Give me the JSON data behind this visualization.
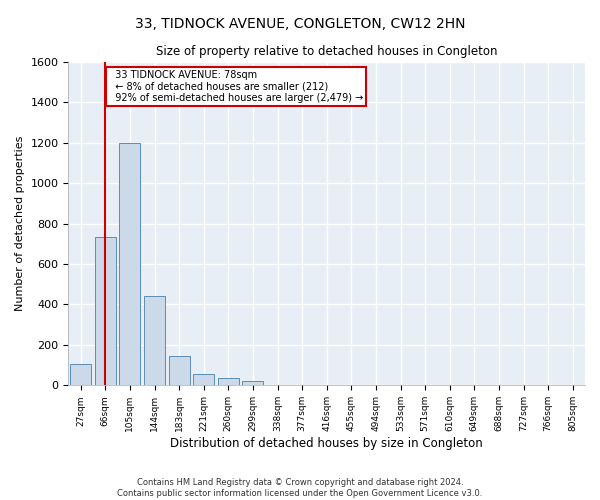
{
  "title": "33, TIDNOCK AVENUE, CONGLETON, CW12 2HN",
  "subtitle": "Size of property relative to detached houses in Congleton",
  "xlabel": "Distribution of detached houses by size in Congleton",
  "ylabel": "Number of detached properties",
  "bar_color": "#ccd9e8",
  "bar_edge_color": "#5b8db8",
  "background_color": "#e8eef5",
  "grid_color": "#ffffff",
  "annotation_box_color": "#cc0000",
  "vline_color": "#cc0000",
  "vline_x_index": 1,
  "annotation_text": "  33 TIDNOCK AVENUE: 78sqm\n  ← 8% of detached houses are smaller (212)\n  92% of semi-detached houses are larger (2,479) →",
  "categories": [
    "27sqm",
    "66sqm",
    "105sqm",
    "144sqm",
    "183sqm",
    "221sqm",
    "260sqm",
    "299sqm",
    "338sqm",
    "377sqm",
    "416sqm",
    "455sqm",
    "494sqm",
    "533sqm",
    "571sqm",
    "610sqm",
    "649sqm",
    "688sqm",
    "727sqm",
    "766sqm",
    "805sqm"
  ],
  "values": [
    107,
    735,
    1200,
    440,
    143,
    55,
    35,
    22,
    0,
    0,
    0,
    0,
    0,
    0,
    0,
    0,
    0,
    0,
    0,
    0,
    0
  ],
  "ylim": [
    0,
    1600
  ],
  "yticks": [
    0,
    200,
    400,
    600,
    800,
    1000,
    1200,
    1400,
    1600
  ],
  "footer_line1": "Contains HM Land Registry data © Crown copyright and database right 2024.",
  "footer_line2": "Contains public sector information licensed under the Open Government Licence v3.0."
}
